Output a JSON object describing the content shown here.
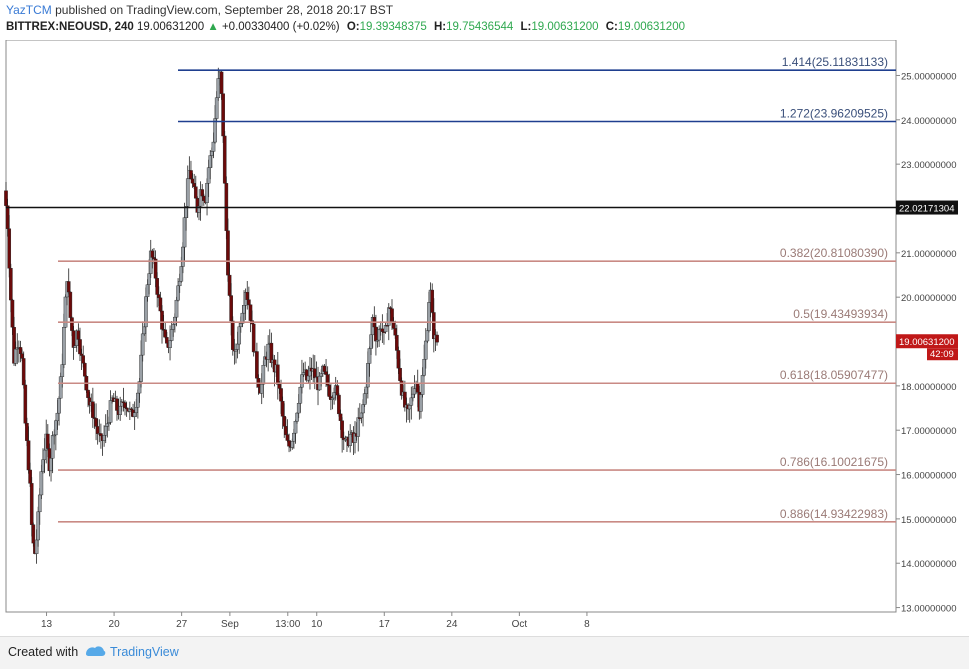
{
  "header": {
    "author": "YazTCM",
    "published_text": "published on TradingView.com, September 28, 2018 20:17 BST",
    "symbol": "BITTREX:NEOUSD, 240",
    "last": "19.00631200",
    "change": "+0.00330400 (+0.02%)",
    "open_label": "O:",
    "open": "19.39348375",
    "high_label": "H:",
    "high": "19.75436544",
    "low_label": "L:",
    "low": "19.00631200",
    "close_label": "C:",
    "close": "19.00631200"
  },
  "footer": {
    "created": "Created with",
    "brand": "TradingView"
  },
  "colors": {
    "up": "#9aa0a6",
    "down": "#6b0a0a",
    "fib": "#c98a84",
    "ext": "#1f3f8f",
    "level": "#111111",
    "price_tag": "#c01818"
  },
  "chart_data": {
    "type": "candlestick",
    "ylim": [
      12.9,
      25.8
    ],
    "y_ticks": [
      "13.00000000",
      "14.00000000",
      "15.00000000",
      "16.00000000",
      "17.00000000",
      "18.00000000",
      "19.00000000",
      "20.00000000",
      "21.00000000",
      "22.00000000",
      "23.00000000",
      "24.00000000",
      "25.00000000"
    ],
    "y_tick_values": [
      13,
      14,
      15,
      16,
      17,
      18,
      19,
      20,
      21,
      22,
      23,
      24,
      25
    ],
    "x_range": [
      8.8,
      9.65
    ],
    "x_ticks": [
      {
        "label": "13",
        "x": 13
      },
      {
        "label": "20",
        "x": 20
      },
      {
        "label": "27",
        "x": 27
      },
      {
        "label": "Sep",
        "x": 32
      },
      {
        "label": "13:00",
        "x": 38
      },
      {
        "label": "10",
        "x": 41
      },
      {
        "label": "17",
        "x": 48
      },
      {
        "label": "24",
        "x": 55
      },
      {
        "label": "Oct",
        "x": 62
      },
      {
        "label": "8",
        "x": 69
      }
    ],
    "fib_levels": [
      {
        "label": "0.382(20.81080390)",
        "value": 20.8108039
      },
      {
        "label": "0.5(19.43493934)",
        "value": 19.43493934
      },
      {
        "label": "0.618(18.05907477)",
        "value": 18.05907477
      },
      {
        "label": "0.786(16.10021675)",
        "value": 16.10021675
      },
      {
        "label": "0.886(14.93422983)",
        "value": 14.93422983
      }
    ],
    "extension_levels": [
      {
        "label": "1.414(25.11831133)",
        "value": 25.11831133
      },
      {
        "label": "1.272(23.96209525)",
        "value": 23.96209525
      }
    ],
    "horizontal_level": {
      "label": "22.02171304",
      "value": 22.02171304
    },
    "current_price": {
      "label": "19.00631200",
      "countdown": "42:09",
      "value": 19.006312
    },
    "price_path": [
      [
        8.8,
        22.4
      ],
      [
        9.1,
        21.8
      ],
      [
        9.5,
        19.8
      ],
      [
        9.8,
        18.6
      ],
      [
        10.2,
        19.1
      ],
      [
        10.6,
        18.7
      ],
      [
        11.0,
        17.0
      ],
      [
        11.4,
        16.0
      ],
      [
        11.7,
        14.5
      ],
      [
        12.0,
        14.2
      ],
      [
        12.3,
        15.0
      ],
      [
        12.7,
        16.3
      ],
      [
        13.1,
        16.8
      ],
      [
        13.5,
        16.2
      ],
      [
        13.9,
        17.0
      ],
      [
        14.3,
        17.4
      ],
      [
        14.7,
        18.2
      ],
      [
        15.0,
        19.4
      ],
      [
        15.3,
        20.5
      ],
      [
        15.6,
        19.6
      ],
      [
        16.0,
        18.9
      ],
      [
        16.4,
        19.3
      ],
      [
        16.8,
        18.6
      ],
      [
        17.2,
        18.2
      ],
      [
        17.6,
        17.6
      ],
      [
        18.0,
        17.4
      ],
      [
        18.4,
        17.0
      ],
      [
        18.8,
        16.7
      ],
      [
        19.2,
        16.9
      ],
      [
        19.6,
        17.3
      ],
      [
        20.0,
        17.7
      ],
      [
        20.4,
        17.5
      ],
      [
        20.8,
        17.4
      ],
      [
        21.2,
        17.7
      ],
      [
        21.6,
        17.5
      ],
      [
        22.0,
        17.3
      ],
      [
        22.4,
        17.6
      ],
      [
        22.8,
        18.1
      ],
      [
        23.2,
        19.2
      ],
      [
        23.6,
        20.3
      ],
      [
        24.0,
        21.0
      ],
      [
        24.4,
        20.6
      ],
      [
        24.8,
        19.9
      ],
      [
        25.2,
        19.3
      ],
      [
        25.6,
        18.8
      ],
      [
        26.0,
        19.1
      ],
      [
        26.4,
        19.5
      ],
      [
        26.8,
        20.2
      ],
      [
        27.2,
        21.0
      ],
      [
        27.6,
        22.1
      ],
      [
        28.0,
        22.9
      ],
      [
        28.4,
        22.4
      ],
      [
        28.8,
        22.0
      ],
      [
        29.2,
        22.5
      ],
      [
        29.6,
        22.2
      ],
      [
        30.0,
        23.0
      ],
      [
        30.4,
        23.4
      ],
      [
        30.8,
        24.5
      ],
      [
        31.1,
        25.1
      ],
      [
        31.4,
        24.2
      ],
      [
        31.7,
        22.0
      ],
      [
        32.0,
        20.5
      ],
      [
        32.3,
        19.3
      ],
      [
        32.6,
        18.6
      ],
      [
        33.0,
        19.1
      ],
      [
        33.4,
        19.7
      ],
      [
        33.8,
        20.2
      ],
      [
        34.2,
        19.8
      ],
      [
        34.6,
        19.0
      ],
      [
        35.0,
        18.2
      ],
      [
        35.4,
        17.9
      ],
      [
        35.8,
        18.6
      ],
      [
        36.2,
        18.9
      ],
      [
        36.6,
        18.5
      ],
      [
        37.0,
        18.3
      ],
      [
        37.4,
        17.7
      ],
      [
        37.8,
        17.0
      ],
      [
        38.2,
        16.6
      ],
      [
        38.6,
        16.8
      ],
      [
        39.0,
        17.3
      ],
      [
        39.4,
        17.9
      ],
      [
        39.8,
        18.3
      ],
      [
        40.2,
        18.1
      ],
      [
        40.6,
        18.4
      ],
      [
        41.0,
        18.2
      ],
      [
        41.4,
        18.0
      ],
      [
        41.8,
        18.3
      ],
      [
        42.2,
        18.1
      ],
      [
        42.6,
        17.8
      ],
      [
        43.0,
        18.0
      ],
      [
        43.4,
        17.6
      ],
      [
        43.8,
        17.0
      ],
      [
        44.2,
        16.6
      ],
      [
        44.6,
        16.9
      ],
      [
        45.0,
        16.7
      ],
      [
        45.4,
        17.1
      ],
      [
        45.8,
        17.3
      ],
      [
        46.2,
        17.9
      ],
      [
        46.6,
        18.7
      ],
      [
        47.0,
        19.6
      ],
      [
        47.4,
        19.0
      ],
      [
        47.8,
        19.4
      ],
      [
        48.2,
        19.0
      ],
      [
        48.6,
        19.8
      ],
      [
        49.0,
        19.5
      ],
      [
        49.4,
        18.9
      ],
      [
        49.8,
        18.2
      ],
      [
        50.2,
        17.6
      ],
      [
        50.6,
        17.3
      ],
      [
        51.0,
        17.7
      ],
      [
        51.4,
        18.2
      ],
      [
        51.8,
        17.6
      ],
      [
        52.2,
        18.3
      ],
      [
        52.6,
        19.3
      ],
      [
        52.9,
        20.3
      ],
      [
        53.2,
        19.3
      ],
      [
        53.5,
        19.0
      ]
    ]
  }
}
